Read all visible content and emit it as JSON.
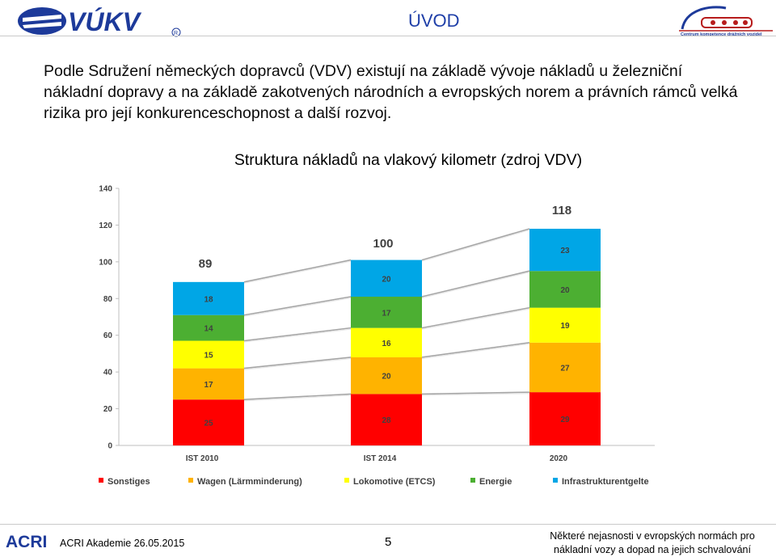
{
  "header": {
    "title": "ÚVOD",
    "left_logo_text": "VÚKV",
    "right_logo_caption": "Centrum kompetence drážních vozidel"
  },
  "intro_text": "Podle Sdružení německých dopravců (VDV) existují na základě vývoje nákladů u železniční nákladní dopravy a na základě zakotvených národních a evropských norem a právních rámců velká rizika pro její konkurenceschopnost a další rozvoj.",
  "chart_data": {
    "type": "bar",
    "stacked": true,
    "title": "Struktura nákladů na vlakový kilometr (zdroj VDV)",
    "categories": [
      "IST 2010",
      "IST 2014",
      "2020"
    ],
    "totals": [
      89,
      100,
      118
    ],
    "series": [
      {
        "name": "Sonstiges",
        "color": "#ff0000",
        "values": [
          25,
          28,
          29
        ]
      },
      {
        "name": "Wagen (Lärmminderung)",
        "color": "#ffb300",
        "values": [
          17,
          20,
          27
        ]
      },
      {
        "name": "Lokomotive (ETCS)",
        "color": "#ffff00",
        "values": [
          15,
          16,
          19
        ]
      },
      {
        "name": "Energie",
        "color": "#4caf32",
        "values": [
          14,
          17,
          20
        ]
      },
      {
        "name": "Infrastrukturentgelte",
        "color": "#00a6e6",
        "values": [
          18,
          20,
          23
        ]
      }
    ],
    "yticks": [
      0,
      20,
      40,
      60,
      80,
      100,
      120,
      140
    ],
    "ylim": [
      0,
      140
    ],
    "legend_position": "bottom",
    "grid": false
  },
  "footer": {
    "left_text": "ACRI Akademie 26.05.2015",
    "logo_text": "ACRI",
    "page_number": "5",
    "right_line1": "Některé nejasnosti v evropských normách pro",
    "right_line2": "nákladní vozy a dopad na jejich schvalování"
  }
}
